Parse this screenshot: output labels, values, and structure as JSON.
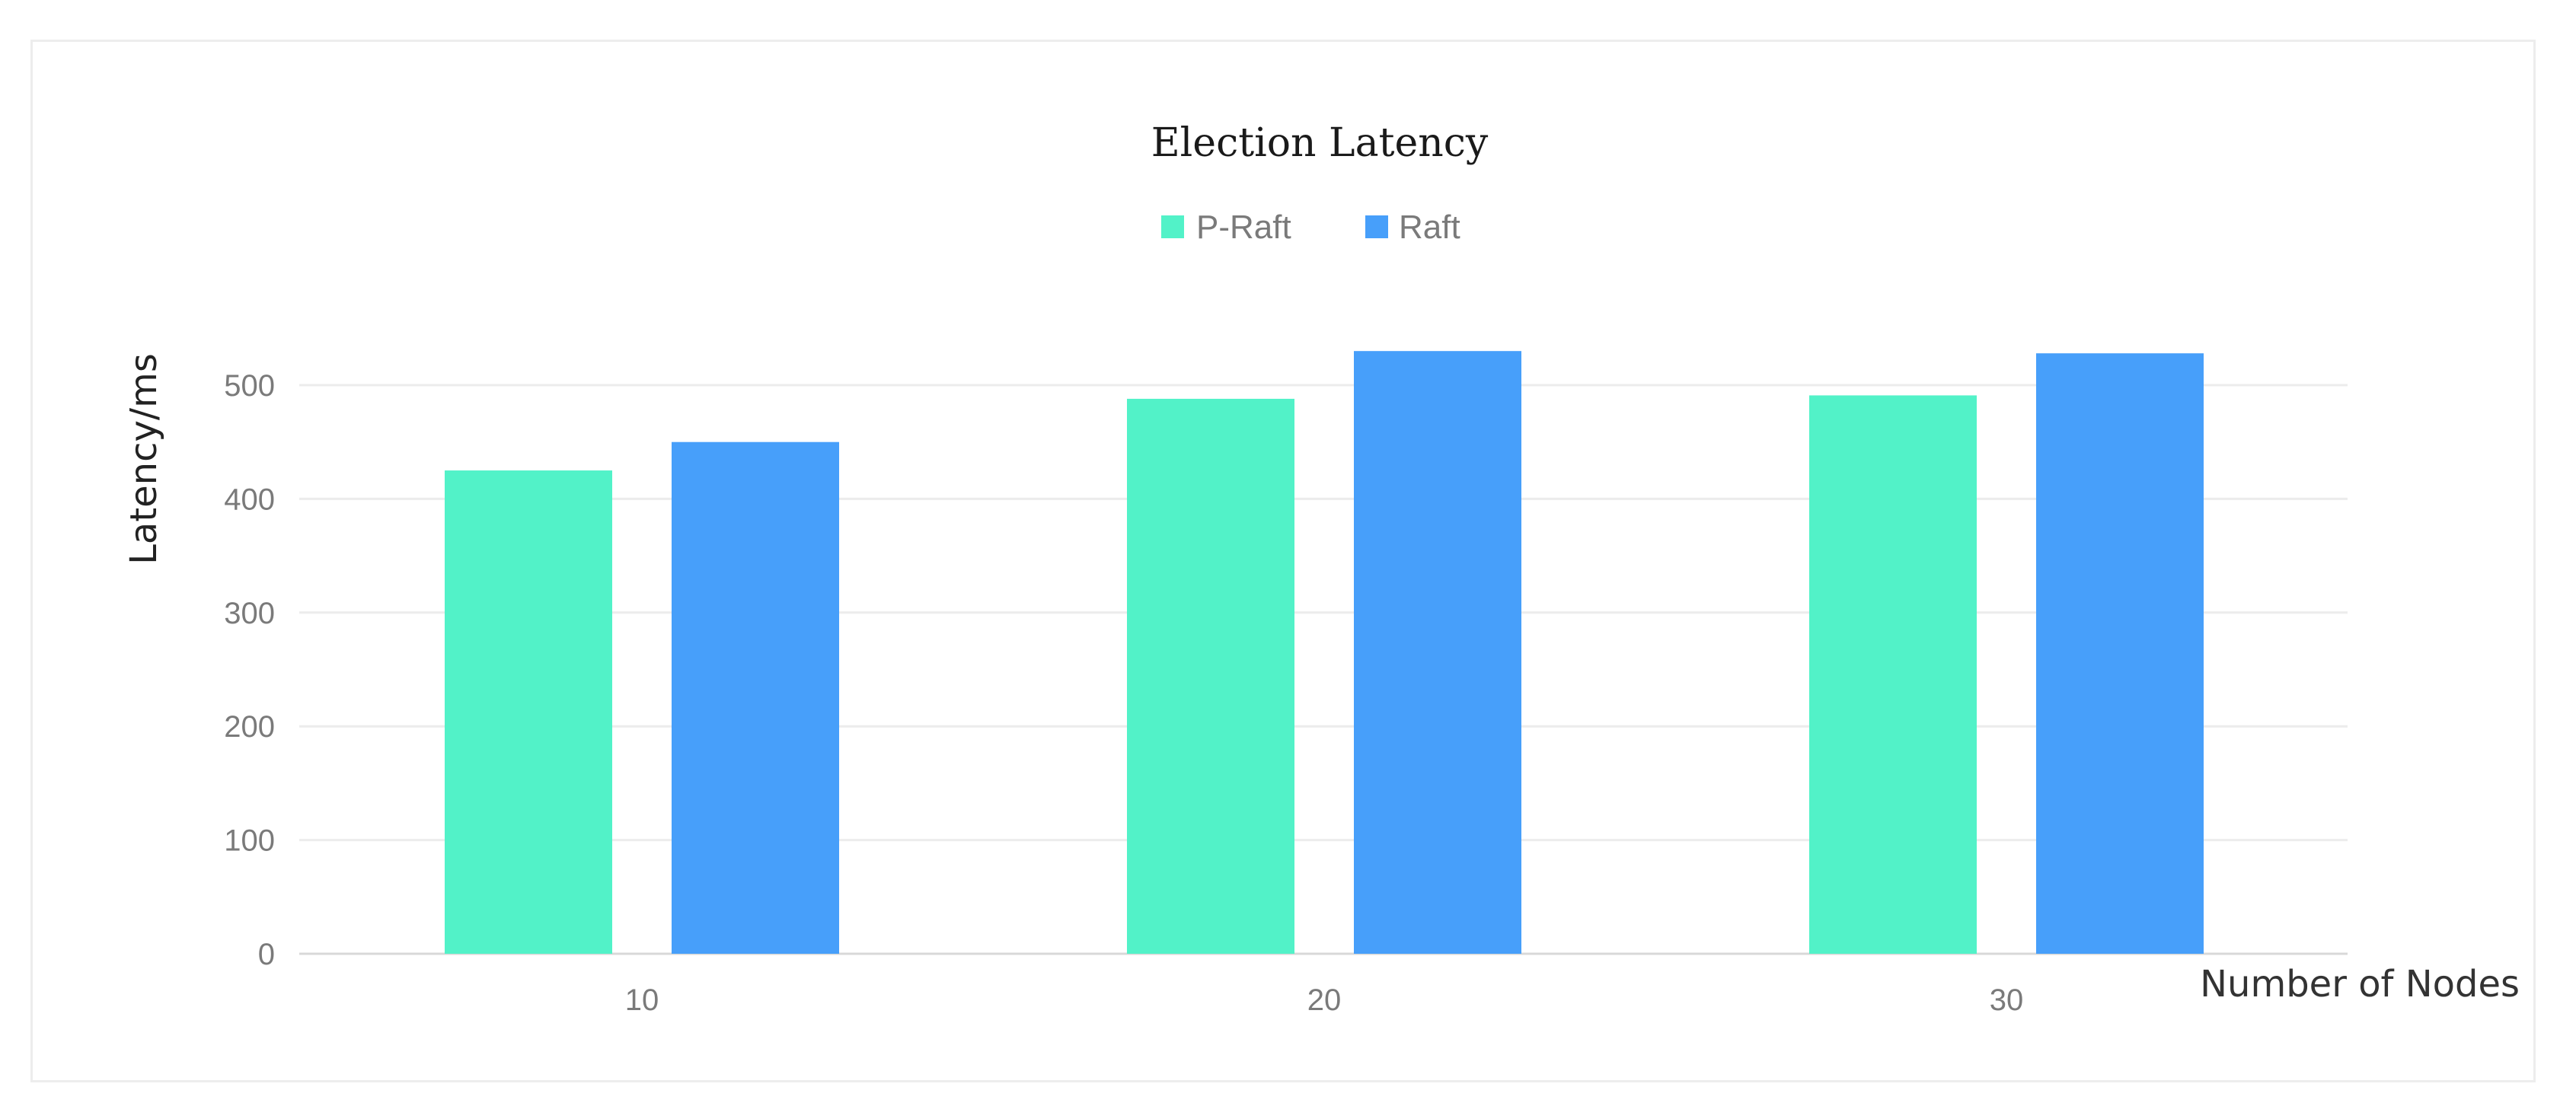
{
  "chart_data": {
    "type": "bar",
    "title": "Election Latency",
    "xlabel": "Number of Nodes",
    "ylabel": "Latency/ms",
    "categories": [
      "10",
      "20",
      "30"
    ],
    "series": [
      {
        "name": "P-Raft",
        "values": [
          425,
          488,
          491
        ],
        "color": "#52f2c8"
      },
      {
        "name": "Raft",
        "values": [
          450,
          530,
          528
        ],
        "color": "#479ffa"
      }
    ],
    "ylim": [
      0,
      500
    ],
    "yticks": [
      "0",
      "100",
      "200",
      "300",
      "400",
      "500"
    ],
    "grid": true,
    "legend_position": "top-center"
  }
}
